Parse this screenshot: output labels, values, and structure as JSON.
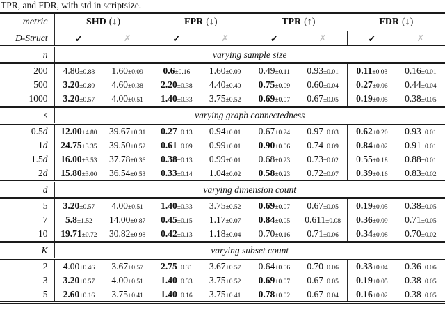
{
  "caption": "TPR, and FDR, with std in scriptsize.",
  "colors": {
    "rule": "#1a1a1a",
    "cross_mark": "#bdbdbd",
    "text": "#111111"
  },
  "table": {
    "metric_label": "metric",
    "dstruct_label": "D-Struct",
    "check": "✓",
    "cross": "✗",
    "plus_minus": "±",
    "groups": [
      {
        "name": "SHD",
        "arrow": "(↓)"
      },
      {
        "name": "FPR",
        "arrow": "(↓)"
      },
      {
        "name": "TPR",
        "arrow": "(↑)"
      },
      {
        "name": "FDR",
        "arrow": "(↓)"
      }
    ],
    "sections": [
      {
        "var": "n",
        "title": "varying sample size",
        "rows": [
          {
            "num": "200",
            "suffix": "",
            "cells": [
              [
                "4.80",
                "0.88",
                0
              ],
              [
                "1.60",
                "0.09",
                0
              ],
              [
                "0.6",
                "0.16",
                1
              ],
              [
                "1.60",
                "0.09",
                0
              ],
              [
                "0.49",
                "0.11",
                0
              ],
              [
                "0.93",
                "0.01",
                0
              ],
              [
                "0.11",
                "0.03",
                1
              ],
              [
                "0.16",
                "0.01",
                0
              ]
            ]
          },
          {
            "num": "500",
            "suffix": "",
            "cells": [
              [
                "3.20",
                "0.80",
                1
              ],
              [
                "4.60",
                "0.38",
                0
              ],
              [
                "2.20",
                "0.38",
                1
              ],
              [
                "4.40",
                "0.40",
                0
              ],
              [
                "0.75",
                "0.09",
                1
              ],
              [
                "0.60",
                "0.04",
                0
              ],
              [
                "0.27",
                "0.06",
                1
              ],
              [
                "0.44",
                "0.04",
                0
              ]
            ]
          },
          {
            "num": "1000",
            "suffix": "",
            "cells": [
              [
                "3.20",
                "0.57",
                1
              ],
              [
                "4.00",
                "0.51",
                0
              ],
              [
                "1.40",
                "0.33",
                1
              ],
              [
                "3.75",
                "0.52",
                0
              ],
              [
                "0.69",
                "0.07",
                1
              ],
              [
                "0.67",
                "0.05",
                0
              ],
              [
                "0.19",
                "0.05",
                1
              ],
              [
                "0.38",
                "0.05",
                0
              ]
            ]
          }
        ]
      },
      {
        "var": "s",
        "title": "varying graph connectedness",
        "rows": [
          {
            "num": "0.5",
            "suffix": "d",
            "cells": [
              [
                "12.00",
                "4.80",
                1
              ],
              [
                "39.67",
                "0.31",
                0
              ],
              [
                "0.27",
                "0.13",
                1
              ],
              [
                "0.94",
                "0.01",
                0
              ],
              [
                "0.67",
                "0.24",
                0
              ],
              [
                "0.97",
                "0.03",
                0
              ],
              [
                "0.62",
                "0.20",
                1
              ],
              [
                "0.93",
                "0.01",
                0
              ]
            ]
          },
          {
            "num": "1",
            "suffix": "d",
            "cells": [
              [
                "24.75",
                "3.35",
                1
              ],
              [
                "39.50",
                "0.52",
                0
              ],
              [
                "0.61",
                "0.09",
                1
              ],
              [
                "0.99",
                "0.01",
                0
              ],
              [
                "0.90",
                "0.06",
                1
              ],
              [
                "0.74",
                "0.09",
                0
              ],
              [
                "0.84",
                "0.02",
                1
              ],
              [
                "0.91",
                "0.01",
                0
              ]
            ]
          },
          {
            "num": "1.5",
            "suffix": "d",
            "cells": [
              [
                "16.00",
                "3.53",
                1
              ],
              [
                "37.78",
                "0.36",
                0
              ],
              [
                "0.38",
                "0.13",
                1
              ],
              [
                "0.99",
                "0.01",
                0
              ],
              [
                "0.68",
                "0.23",
                0
              ],
              [
                "0.73",
                "0.02",
                0
              ],
              [
                "0.55",
                "0.18",
                0
              ],
              [
                "0.88",
                "0.01",
                0
              ]
            ]
          },
          {
            "num": "2",
            "suffix": "d",
            "cells": [
              [
                "15.80",
                "3.00",
                1
              ],
              [
                "36.54",
                "0.53",
                0
              ],
              [
                "0.33",
                "0.14",
                1
              ],
              [
                "1.04",
                "0.02",
                0
              ],
              [
                "0.58",
                "0.23",
                1
              ],
              [
                "0.72",
                "0.07",
                0
              ],
              [
                "0.39",
                "0.16",
                1
              ],
              [
                "0.83",
                "0.02",
                0
              ]
            ]
          }
        ]
      },
      {
        "var": "d",
        "title": "varying dimension count",
        "rows": [
          {
            "num": "5",
            "suffix": "",
            "cells": [
              [
                "3.20",
                "0.57",
                1
              ],
              [
                "4.00",
                "0.51",
                0
              ],
              [
                "1.40",
                "0.33",
                1
              ],
              [
                "3.75",
                "0.52",
                0
              ],
              [
                "0.69",
                "0.07",
                1
              ],
              [
                "0.67",
                "0.05",
                0
              ],
              [
                "0.19",
                "0.05",
                1
              ],
              [
                "0.38",
                "0.05",
                0
              ]
            ]
          },
          {
            "num": "7",
            "suffix": "",
            "cells": [
              [
                "5.8",
                "1.52",
                1
              ],
              [
                "14.00",
                "0.87",
                0
              ],
              [
                "0.45",
                "0.15",
                1
              ],
              [
                "1.17",
                "0.07",
                0
              ],
              [
                "0.84",
                "0.05",
                1
              ],
              [
                "0.611",
                "0.08",
                0
              ],
              [
                "0.36",
                "0.09",
                1
              ],
              [
                "0.71",
                "0.05",
                0
              ]
            ]
          },
          {
            "num": "10",
            "suffix": "",
            "cells": [
              [
                "19.71",
                "0.72",
                1
              ],
              [
                "30.82",
                "0.98",
                0
              ],
              [
                "0.42",
                "0.13",
                1
              ],
              [
                "1.18",
                "0.04",
                0
              ],
              [
                "0.70",
                "0.16",
                0
              ],
              [
                "0.71",
                "0.06",
                0
              ],
              [
                "0.34",
                "0.08",
                1
              ],
              [
                "0.70",
                "0.02",
                0
              ]
            ]
          }
        ]
      },
      {
        "var": "K",
        "title": "varying subset count",
        "rows": [
          {
            "num": "2",
            "suffix": "",
            "cells": [
              [
                "4.00",
                "0.46",
                0
              ],
              [
                "3.67",
                "0.57",
                0
              ],
              [
                "2.75",
                "0.31",
                1
              ],
              [
                "3.67",
                "0.57",
                0
              ],
              [
                "0.64",
                "0.06",
                0
              ],
              [
                "0.70",
                "0.06",
                0
              ],
              [
                "0.33",
                "0.04",
                1
              ],
              [
                "0.36",
                "0.06",
                0
              ]
            ]
          },
          {
            "num": "3",
            "suffix": "",
            "cells": [
              [
                "3.20",
                "0.57",
                1
              ],
              [
                "4.00",
                "0.51",
                0
              ],
              [
                "1.40",
                "0.33",
                1
              ],
              [
                "3.75",
                "0.52",
                0
              ],
              [
                "0.69",
                "0.07",
                1
              ],
              [
                "0.67",
                "0.05",
                0
              ],
              [
                "0.19",
                "0.05",
                1
              ],
              [
                "0.38",
                "0.05",
                0
              ]
            ]
          },
          {
            "num": "5",
            "suffix": "",
            "cells": [
              [
                "2.60",
                "0.16",
                1
              ],
              [
                "3.75",
                "0.41",
                0
              ],
              [
                "1.40",
                "0.16",
                1
              ],
              [
                "3.75",
                "0.41",
                0
              ],
              [
                "0.78",
                "0.02",
                1
              ],
              [
                "0.67",
                "0.04",
                0
              ],
              [
                "0.16",
                "0.02",
                1
              ],
              [
                "0.38",
                "0.05",
                0
              ]
            ]
          }
        ]
      }
    ]
  }
}
